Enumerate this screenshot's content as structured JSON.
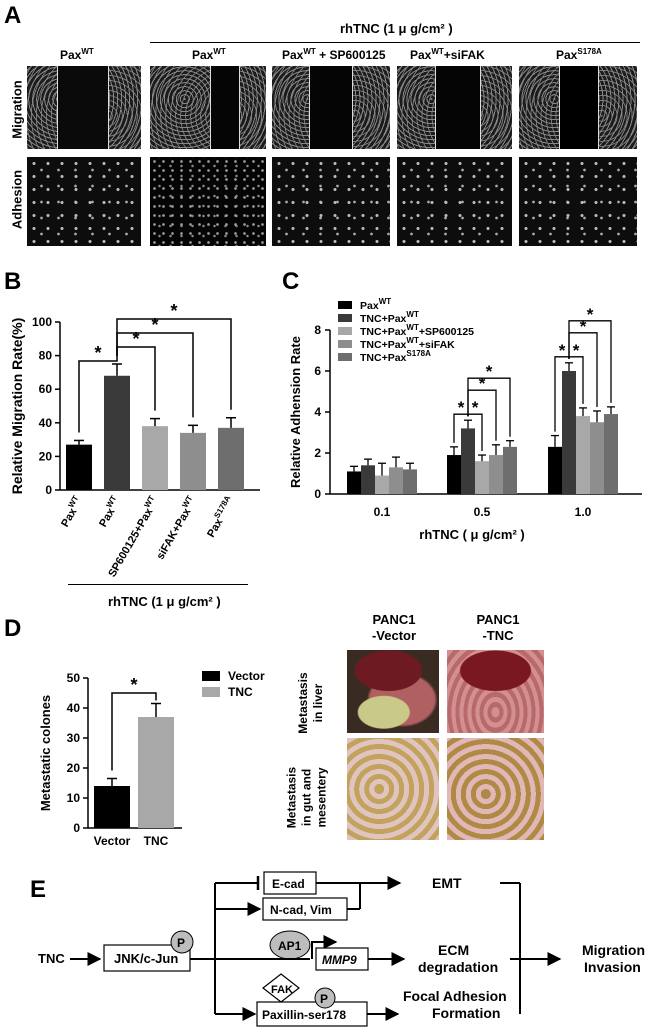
{
  "panel_a": {
    "letter": "A",
    "treatment_header": "rhTNC (1 μ g/cm² )",
    "columns": [
      {
        "base": "Pax",
        "sup": "WT",
        "suffix": ""
      },
      {
        "base": "Pax",
        "sup": "WT",
        "suffix": " + SP600125"
      },
      {
        "base": "Pax",
        "sup": "WT",
        "suffix": "+siFAK"
      },
      {
        "base": "Pax",
        "sup": "WT",
        "suffix": ""
      },
      {
        "base": "Pax",
        "sup": "S178A",
        "suffix": ""
      }
    ],
    "row_labels": [
      "Migration",
      "Adhesion"
    ]
  },
  "panel_b": {
    "letter": "B",
    "treatment_label": "rhTNC (1  μ g/cm² )",
    "chart_data": {
      "type": "bar",
      "ylabel": "Relative Migration Rate(%)",
      "ylim": [
        0,
        100
      ],
      "yticks": [
        0,
        20,
        40,
        60,
        80,
        100
      ],
      "categories": [
        "PaxWT",
        "PaxWT",
        "SP600125+PaxWT",
        "siFAK+PaxWT",
        "PaxS178A"
      ],
      "category_labels": [
        {
          "base": "Pax",
          "sup": "WT"
        },
        {
          "base": "Pax",
          "sup": "WT"
        },
        {
          "base": "SP600125+Pax",
          "sup": "WT"
        },
        {
          "base": "siFAK+Pax",
          "sup": "WT"
        },
        {
          "base": "Pax",
          "sup": "S178A"
        }
      ],
      "values": [
        27,
        68,
        38,
        34,
        37
      ],
      "errors": [
        2.5,
        7,
        4.5,
        4.5,
        6
      ],
      "colors": [
        "#000000",
        "#3a3a3a",
        "#a8a8a8",
        "#8e8e8e",
        "#6e6e6e"
      ],
      "significance": [
        {
          "from": 0,
          "to": 1,
          "label": "*"
        },
        {
          "from": 1,
          "to": 2,
          "label": "*"
        },
        {
          "from": 1,
          "to": 3,
          "label": "*"
        },
        {
          "from": 1,
          "to": 4,
          "label": "*"
        }
      ]
    }
  },
  "panel_c": {
    "letter": "C",
    "chart_data": {
      "type": "bar",
      "ylabel": "Relative Adhension Rate",
      "xlabel": "rhTNC ( μ g/cm² )",
      "ylim": [
        0,
        8
      ],
      "yticks": [
        0,
        2,
        4,
        6,
        8
      ],
      "categories": [
        "0.1",
        "0.5",
        "1.0"
      ],
      "legend": [
        {
          "base": "Pax",
          "sup": "WT",
          "suffix": "",
          "color": "#000000"
        },
        {
          "base": "TNC+Pax",
          "sup": "WT",
          "suffix": "",
          "color": "#3a3a3a"
        },
        {
          "base": "TNC+Pax",
          "sup": "WT",
          "suffix": "+SP600125",
          "color": "#a8a8a8"
        },
        {
          "base": "TNC+Pax",
          "sup": "WT",
          "suffix": "+siFAK",
          "color": "#8e8e8e"
        },
        {
          "base": "TNC+Pax",
          "sup": "S178A",
          "suffix": "",
          "color": "#6e6e6e"
        }
      ],
      "series": [
        {
          "values": [
            1.1,
            1.9,
            2.3
          ],
          "errors": [
            0.25,
            0.4,
            0.55
          ]
        },
        {
          "values": [
            1.4,
            3.2,
            6.0
          ],
          "errors": [
            0.3,
            0.4,
            0.4
          ]
        },
        {
          "values": [
            0.9,
            1.6,
            3.8
          ],
          "errors": [
            0.6,
            0.3,
            0.4
          ]
        },
        {
          "values": [
            1.3,
            1.9,
            3.5
          ],
          "errors": [
            0.5,
            0.5,
            0.55
          ]
        },
        {
          "values": [
            1.2,
            2.3,
            3.9
          ],
          "errors": [
            0.3,
            0.3,
            0.35
          ]
        }
      ],
      "significance": [
        {
          "group": 1,
          "from": 0,
          "to": 1,
          "label": "*"
        },
        {
          "group": 1,
          "from": 1,
          "to": 2,
          "label": "*"
        },
        {
          "group": 1,
          "from": 1,
          "to": 3,
          "label": "*"
        },
        {
          "group": 1,
          "from": 1,
          "to": 4,
          "label": "*"
        },
        {
          "group": 2,
          "from": 0,
          "to": 1,
          "label": "*"
        },
        {
          "group": 2,
          "from": 1,
          "to": 2,
          "label": "*"
        },
        {
          "group": 2,
          "from": 1,
          "to": 3,
          "label": "*"
        },
        {
          "group": 2,
          "from": 1,
          "to": 4,
          "label": "*"
        }
      ]
    }
  },
  "panel_d": {
    "letter": "D",
    "chart_data": {
      "type": "bar",
      "ylabel": "Metastatic colones",
      "ylim": [
        0,
        50
      ],
      "yticks": [
        0,
        10,
        20,
        30,
        40,
        50
      ],
      "categories": [
        "Vector",
        "TNC"
      ],
      "values": [
        14,
        37
      ],
      "errors": [
        2.5,
        4.5
      ],
      "colors": [
        "#000000",
        "#a8a8a8"
      ],
      "legend": [
        {
          "name": "Vector",
          "color": "#000000"
        },
        {
          "name": "TNC",
          "color": "#a8a8a8"
        }
      ],
      "significance": [
        {
          "from": 0,
          "to": 1,
          "label": "*"
        }
      ]
    },
    "photo_headers": [
      {
        "line1": "PANC1",
        "line2": "-Vector"
      },
      {
        "line1": "PANC1",
        "line2": "-TNC"
      }
    ],
    "photo_rows": [
      {
        "line1": "Metastasis",
        "line2": "in liver"
      },
      {
        "line1": "Metastasis",
        "line2": "in gut and",
        "line3": "mesentery"
      }
    ]
  },
  "panel_e": {
    "letter": "E",
    "tnc": "TNC",
    "jnk": "JNK/c-Jun",
    "p1": "P",
    "ecad": "E-cad",
    "ncad": "N-cad, Vim",
    "ap1": "AP1",
    "mmp9": "MMP9",
    "fak": "FAK",
    "p2": "P",
    "paxillin": "Paxillin-ser178",
    "emt": "EMT",
    "ecm1": "ECM",
    "ecm2": "degradation",
    "focal1": "Focal Adhesion",
    "focal2": "Formation",
    "mig1": "Migration",
    "mig2": "Invasion"
  }
}
